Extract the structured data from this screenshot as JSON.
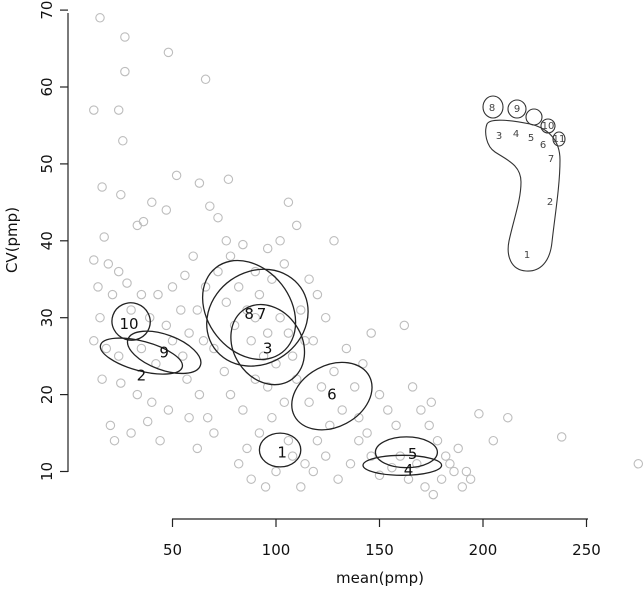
{
  "chart_data": {
    "type": "scatter",
    "xlabel": "mean(pmp)",
    "ylabel": "CV(pmp)",
    "xlim": [
      0,
      275
    ],
    "ylim": [
      5,
      70
    ],
    "x_ticks": [
      50,
      100,
      150,
      200,
      250
    ],
    "y_ticks": [
      10,
      20,
      30,
      40,
      50,
      60,
      70
    ],
    "points": [
      [
        15,
        69
      ],
      [
        27,
        66.5
      ],
      [
        48,
        64.5
      ],
      [
        66,
        61
      ],
      [
        27,
        62
      ],
      [
        12,
        57
      ],
      [
        24,
        57
      ],
      [
        26,
        53
      ],
      [
        16,
        47
      ],
      [
        25,
        46
      ],
      [
        52,
        48.5
      ],
      [
        63,
        47.5
      ],
      [
        77,
        48
      ],
      [
        40,
        45
      ],
      [
        68,
        44.5
      ],
      [
        72,
        43
      ],
      [
        17,
        40.5
      ],
      [
        36,
        42.5
      ],
      [
        47,
        44
      ],
      [
        33,
        42
      ],
      [
        60,
        38
      ],
      [
        12,
        37.5
      ],
      [
        19,
        37
      ],
      [
        24,
        36
      ],
      [
        28,
        34.5
      ],
      [
        35,
        33
      ],
      [
        43,
        33
      ],
      [
        50,
        34
      ],
      [
        56,
        35.5
      ],
      [
        14,
        34
      ],
      [
        21,
        33
      ],
      [
        30,
        31
      ],
      [
        39,
        30
      ],
      [
        47,
        29
      ],
      [
        15,
        30
      ],
      [
        12,
        27
      ],
      [
        18,
        26
      ],
      [
        24,
        25
      ],
      [
        35,
        26
      ],
      [
        42,
        24
      ],
      [
        16,
        22
      ],
      [
        25,
        21.5
      ],
      [
        33,
        20
      ],
      [
        40,
        19
      ],
      [
        48,
        18
      ],
      [
        20,
        16
      ],
      [
        30,
        15
      ],
      [
        38,
        16.5
      ],
      [
        22,
        14
      ],
      [
        44,
        14
      ],
      [
        55,
        25
      ],
      [
        58,
        28
      ],
      [
        62,
        31
      ],
      [
        65,
        27
      ],
      [
        57,
        22
      ],
      [
        63,
        20
      ],
      [
        67,
        17
      ],
      [
        58,
        17
      ],
      [
        62,
        13
      ],
      [
        70,
        15
      ],
      [
        75,
        23
      ],
      [
        70,
        26
      ],
      [
        78,
        38
      ],
      [
        84,
        39.5
      ],
      [
        90,
        36
      ],
      [
        96,
        39
      ],
      [
        102,
        40
      ],
      [
        106,
        45
      ],
      [
        110,
        42
      ],
      [
        104,
        37
      ],
      [
        98,
        35
      ],
      [
        92,
        33
      ],
      [
        86,
        31
      ],
      [
        80,
        29
      ],
      [
        76,
        32
      ],
      [
        82,
        34
      ],
      [
        88,
        27
      ],
      [
        94,
        25
      ],
      [
        100,
        24
      ],
      [
        106,
        28
      ],
      [
        112,
        31
      ],
      [
        116,
        35
      ],
      [
        120,
        33
      ],
      [
        124,
        30
      ],
      [
        128,
        40
      ],
      [
        118,
        27
      ],
      [
        110,
        22
      ],
      [
        104,
        19
      ],
      [
        98,
        17
      ],
      [
        92,
        15
      ],
      [
        86,
        13
      ],
      [
        82,
        11
      ],
      [
        88,
        9
      ],
      [
        95,
        8
      ],
      [
        100,
        10
      ],
      [
        108,
        12
      ],
      [
        114,
        11
      ],
      [
        120,
        14
      ],
      [
        126,
        16
      ],
      [
        132,
        18
      ],
      [
        138,
        21
      ],
      [
        142,
        24
      ],
      [
        146,
        28
      ],
      [
        150,
        20
      ],
      [
        154,
        18
      ],
      [
        158,
        16
      ],
      [
        162,
        29
      ],
      [
        166,
        21
      ],
      [
        170,
        18
      ],
      [
        174,
        16
      ],
      [
        178,
        14
      ],
      [
        182,
        12
      ],
      [
        186,
        10
      ],
      [
        190,
        8
      ],
      [
        194,
        9
      ],
      [
        198,
        17.5
      ],
      [
        205,
        14
      ],
      [
        212,
        17
      ],
      [
        238,
        14.5
      ],
      [
        275,
        11
      ],
      [
        140,
        14
      ],
      [
        136,
        11
      ],
      [
        130,
        9
      ],
      [
        124,
        12
      ],
      [
        118,
        10
      ],
      [
        112,
        8
      ],
      [
        106,
        14
      ],
      [
        146,
        12
      ],
      [
        150,
        9.5
      ],
      [
        156,
        10.5
      ],
      [
        160,
        12
      ],
      [
        164,
        9
      ],
      [
        168,
        11
      ],
      [
        172,
        8
      ],
      [
        176,
        7
      ],
      [
        180,
        9
      ],
      [
        184,
        11
      ],
      [
        188,
        13
      ],
      [
        192,
        10
      ],
      [
        175,
        19
      ],
      [
        128,
        23
      ],
      [
        122,
        21
      ],
      [
        116,
        19
      ],
      [
        134,
        26
      ],
      [
        140,
        17
      ],
      [
        144,
        15
      ],
      [
        96,
        21
      ],
      [
        90,
        22
      ],
      [
        84,
        18
      ],
      [
        78,
        20
      ],
      [
        102,
        30
      ],
      [
        96,
        28
      ],
      [
        90,
        30
      ],
      [
        108,
        25
      ],
      [
        114,
        27
      ],
      [
        72,
        36
      ],
      [
        66,
        34
      ],
      [
        76,
        40
      ],
      [
        54,
        31
      ],
      [
        50,
        27
      ]
    ],
    "ellipses": [
      {
        "label": "1",
        "center": [
          102,
          12.8
        ],
        "semi_axes": [
          10,
          2.2
        ],
        "angle_deg": 0
      },
      {
        "label": "2",
        "center": [
          35,
          25
        ],
        "semi_axes": [
          7,
          5.5
        ],
        "angle_deg": -75
      },
      {
        "label": "3",
        "center": [
          96,
          26.5
        ],
        "semi_axes": [
          16.5,
          5.5
        ],
        "angle_deg": -33
      },
      {
        "label": "4",
        "center": [
          161,
          10.8
        ],
        "semi_axes": [
          19,
          1.3
        ],
        "angle_deg": 0
      },
      {
        "label": "5",
        "center": [
          163,
          12.5
        ],
        "semi_axes": [
          15,
          2
        ],
        "angle_deg": 0
      },
      {
        "label": "6",
        "center": [
          127,
          19.8
        ],
        "semi_axes": [
          20.5,
          4
        ],
        "angle_deg": -28
      },
      {
        "label": "7",
        "center": [
          91,
          30
        ],
        "semi_axes": [
          25.5,
          6
        ],
        "angle_deg": -35
      },
      {
        "label": "8",
        "center": [
          87,
          31
        ],
        "semi_axes": [
          20,
          7
        ],
        "angle_deg": -38
      },
      {
        "label": "9",
        "center": [
          46,
          25.5
        ],
        "semi_axes": [
          8.5,
          5
        ],
        "angle_deg": -70
      },
      {
        "label": "10",
        "center": [
          30,
          29.5
        ],
        "semi_axes": [
          9,
          2.5
        ],
        "angle_deg": -71
      }
    ],
    "ellipse_label_positions": {
      "1": [
        103,
        12.5
      ],
      "2": [
        35,
        22.5
      ],
      "3": [
        96,
        26
      ],
      "4": [
        164,
        10.2
      ],
      "5": [
        166,
        12.3
      ],
      "6": [
        127,
        20
      ],
      "7": [
        93,
        30.5
      ],
      "8": [
        87,
        30.5
      ],
      "9": [
        46,
        25.5
      ],
      "10": [
        29,
        29.2
      ]
    },
    "footprint": {
      "labels": [
        "1",
        "2",
        "3",
        "4",
        "5",
        "6",
        "7",
        "8",
        "9",
        "10",
        "11"
      ]
    }
  }
}
